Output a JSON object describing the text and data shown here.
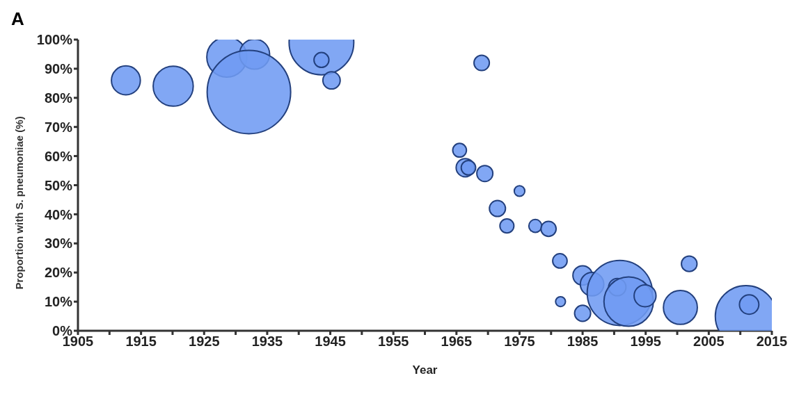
{
  "chart_data": {
    "type": "bubble",
    "xlabel": "Year",
    "ylabel": "Proportion with S. pneumoniae (%)",
    "annotations": [
      "A"
    ],
    "xlim": [
      1905,
      2015
    ],
    "xticks": [
      1905,
      {
        "value": 1910,
        "label": null
      },
      1915,
      {
        "value": 1920,
        "label": null
      },
      1925,
      {
        "value": 1930,
        "label": null
      },
      1935,
      {
        "value": 1940,
        "label": null
      },
      1945,
      {
        "value": 1950,
        "label": null
      },
      1955,
      {
        "value": 1960,
        "label": null
      },
      1965,
      {
        "value": 1970,
        "label": null
      },
      1975,
      {
        "value": 1980,
        "label": null
      },
      1985,
      {
        "value": 1990,
        "label": null
      },
      1995,
      {
        "value": 2000,
        "label": null
      },
      2005,
      {
        "value": 2010,
        "label": null
      },
      2015
    ],
    "ylim": [
      0,
      100
    ],
    "yticks": [
      {
        "value": 0,
        "label": "0%"
      },
      {
        "value": 10,
        "label": "10%"
      },
      {
        "value": 20,
        "label": "20%"
      },
      {
        "value": 30,
        "label": "30%"
      },
      {
        "value": 40,
        "label": "40%"
      },
      {
        "value": 50,
        "label": "50%"
      },
      {
        "value": 60,
        "label": "60%"
      },
      {
        "value": 70,
        "label": "70%"
      },
      {
        "value": 80,
        "label": "80%"
      },
      {
        "value": 90,
        "label": "90%"
      },
      {
        "value": 100,
        "label": "100%"
      }
    ],
    "grid": false,
    "legend": false,
    "marker": "circle",
    "series": [
      {
        "color": "#6f9bf2",
        "x": [
          1912.6,
          1920.1,
          1928.6,
          1933,
          1932.1,
          1943.6,
          1943.6,
          1945.2,
          1969,
          1965.5,
          1966.4,
          1966.9,
          1969.5,
          1975,
          1971.5,
          1973,
          1977.5,
          1979.6,
          1981.4,
          1981.5,
          1985,
          1985,
          1986.5,
          1990.9,
          1990.5,
          1992.3,
          1994.9,
          2000.5,
          2001.9,
          2010.9,
          2011.4
        ],
        "values": [
          86,
          84,
          94,
          95,
          82,
          99,
          93,
          86,
          92,
          62,
          56,
          56,
          54,
          48,
          42,
          36,
          36,
          35,
          24,
          10,
          19,
          6,
          16,
          13,
          15,
          10,
          12,
          8,
          23,
          5,
          9
        ],
        "sizes": [
          0.12,
          0.23,
          0.23,
          0.13,
          1,
          0.6,
          0.032,
          0.043,
          0.034,
          0.027,
          0.048,
          0.03,
          0.037,
          0.016,
          0.037,
          0.028,
          0.024,
          0.033,
          0.03,
          0.014,
          0.054,
          0.037,
          0.079,
          0.61,
          0.043,
          0.35,
          0.069,
          0.165,
          0.035,
          0.54,
          0.054
        ]
      }
    ]
  }
}
